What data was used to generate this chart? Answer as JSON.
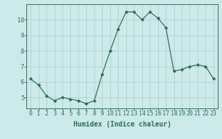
{
  "x": [
    0,
    1,
    2,
    3,
    4,
    5,
    6,
    7,
    8,
    9,
    10,
    11,
    12,
    13,
    14,
    15,
    16,
    17,
    18,
    19,
    20,
    21,
    22,
    23
  ],
  "y": [
    6.2,
    5.8,
    5.1,
    4.8,
    5.0,
    4.9,
    4.8,
    4.6,
    4.8,
    6.5,
    8.0,
    9.4,
    10.5,
    10.5,
    10.0,
    10.5,
    10.1,
    9.5,
    6.7,
    6.8,
    7.0,
    7.1,
    7.0,
    6.2
  ],
  "bg_color": "#cceaea",
  "line_color": "#2e6b5e",
  "marker_color": "#2e6b5e",
  "grid_color": "#aacccc",
  "xlabel": "Humidex (Indice chaleur)",
  "ylim": [
    4.3,
    11.0
  ],
  "xlim": [
    -0.5,
    23.5
  ],
  "yticks": [
    5,
    6,
    7,
    8,
    9,
    10
  ],
  "xticks": [
    0,
    1,
    2,
    3,
    4,
    5,
    6,
    7,
    8,
    9,
    10,
    11,
    12,
    13,
    14,
    15,
    16,
    17,
    18,
    19,
    20,
    21,
    22,
    23
  ],
  "xtick_labels": [
    "0",
    "1",
    "2",
    "3",
    "4",
    "5",
    "6",
    "7",
    "8",
    "9",
    "10",
    "11",
    "12",
    "13",
    "14",
    "15",
    "16",
    "17",
    "18",
    "19",
    "20",
    "21",
    "22",
    "23"
  ],
  "tick_fontsize": 6.0,
  "xlabel_fontsize": 7.0
}
